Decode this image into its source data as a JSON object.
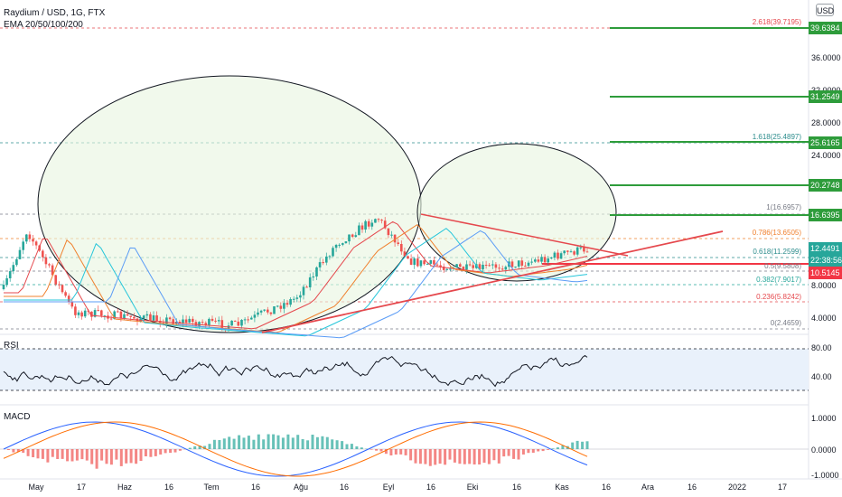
{
  "header": {
    "symbol_title": "Raydium / USD, 1G, FTX",
    "indicator": "EMA 20/50/100/200",
    "currency_button": "USD"
  },
  "panes": {
    "rsi_label": "RSI",
    "macd_label": "MACD"
  },
  "price_axis": {
    "ticks": [
      "36.0000",
      "32.0000",
      "28.0000",
      "24.0000",
      "8.0000",
      "4.0000"
    ],
    "last_price": "12.4491",
    "countdown": "22:38:56",
    "red_level": "10.5145"
  },
  "rsi_axis": {
    "ticks": [
      "80.00",
      "40.00"
    ]
  },
  "macd_axis": {
    "ticks": [
      "1.0000",
      "0.0000",
      "-1.0000"
    ]
  },
  "targets": [
    {
      "label": "39.6384",
      "color": "#2e9c3b"
    },
    {
      "label": "31.2549",
      "color": "#2e9c3b"
    },
    {
      "label": "25.6165",
      "color": "#2e9c3b"
    },
    {
      "label": "20.2748",
      "color": "#2e9c3b"
    },
    {
      "label": "16.6395",
      "color": "#2e9c3b"
    }
  ],
  "fib_levels": [
    {
      "label": "2.618(39.7195)",
      "color": "#e5484d"
    },
    {
      "label": "1.618(25.4897)",
      "color": "#2b8c8c"
    },
    {
      "label": "1(16.6957)",
      "color": "#787b86"
    },
    {
      "label": "0.786(13.6505)",
      "color": "#f0812f"
    },
    {
      "label": "0.618(11.2599)",
      "color": "#2b8c8c"
    },
    {
      "label": "0.5(9.5808)",
      "color": "#787b86"
    },
    {
      "label": "0.382(7.9017)",
      "color": "#26a69a"
    },
    {
      "label": "0.236(5.8242)",
      "color": "#e5484d"
    },
    {
      "label": "0(2.4659)",
      "color": "#787b86"
    }
  ],
  "time_axis": [
    "May",
    "17",
    "Haz",
    "16",
    "Tem",
    "16",
    "Ağu",
    "16",
    "Eyl",
    "16",
    "Eki",
    "16",
    "Kas",
    "16",
    "Ara",
    "16",
    "2022",
    "17"
  ],
  "colors": {
    "bull": "#26a69a",
    "bear": "#ef5350",
    "target_line": "#2e9c3b",
    "trend_line": "#e5484d",
    "last_price_bg": "#26a69a",
    "red_level_bg": "#f23645",
    "ellipse_fill": "#e8f5e0"
  }
}
